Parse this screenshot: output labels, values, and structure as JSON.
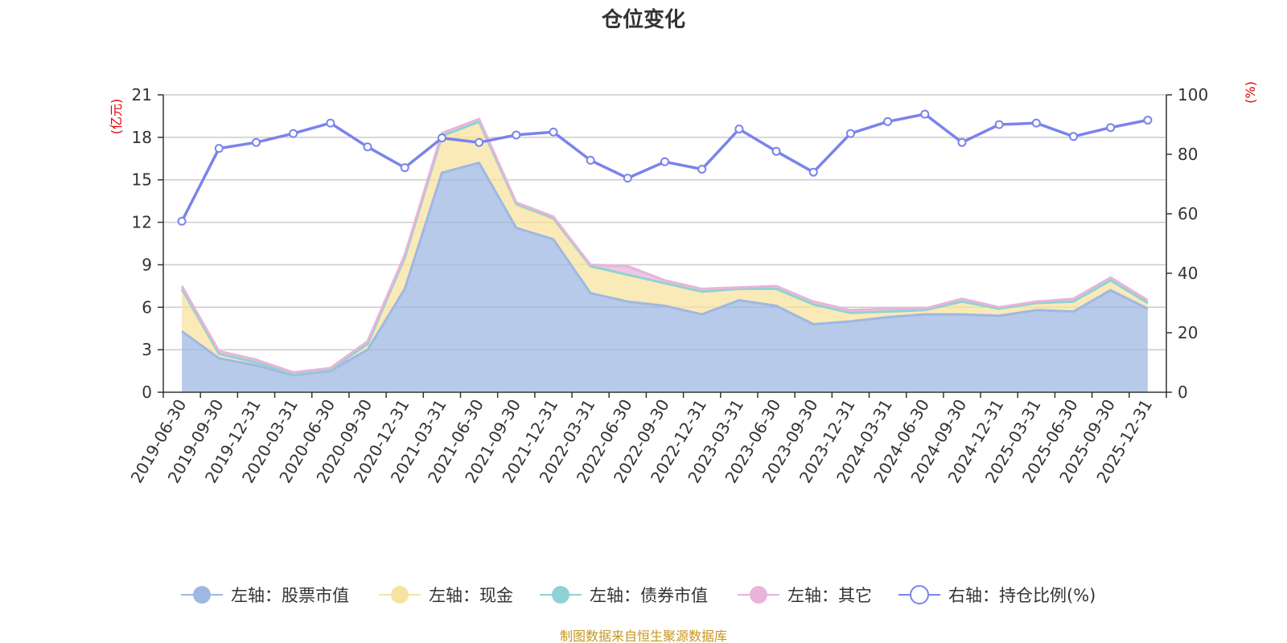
{
  "chart_data": {
    "type": "area",
    "title": "仓位变化",
    "left_axis": {
      "unit": "(亿元)",
      "ylim": [
        0,
        21
      ],
      "ticks": [
        0,
        3,
        6,
        9,
        12,
        15,
        18,
        21
      ]
    },
    "right_axis": {
      "unit": "(%)",
      "ylim": [
        0,
        100
      ],
      "ticks": [
        0,
        20,
        40,
        60,
        80,
        100
      ]
    },
    "categories": [
      "2019-06-30",
      "2019-09-30",
      "2019-12-31",
      "2020-03-31",
      "2020-06-30",
      "2020-09-30",
      "2020-12-31",
      "2021-03-31",
      "2021-06-30",
      "2021-09-30",
      "2021-12-31",
      "2022-03-31",
      "2022-06-30",
      "2022-09-30",
      "2022-12-31",
      "2023-03-31",
      "2023-06-30",
      "2023-09-30",
      "2023-12-31",
      "2024-03-31",
      "2024-06-30",
      "2024-09-30",
      "2024-12-31",
      "2025-03-31",
      "2025-06-30",
      "2025-09-30",
      "2025-12-31"
    ],
    "series": [
      {
        "name": "左轴：股票市值",
        "axis": "left",
        "color": "#9fb8e2",
        "values": [
          4.3,
          2.4,
          1.9,
          1.2,
          1.5,
          3.0,
          7.3,
          15.5,
          16.2,
          11.6,
          10.8,
          7.0,
          6.4,
          6.1,
          5.5,
          6.5,
          6.1,
          4.8,
          5.0,
          5.3,
          5.5,
          5.5,
          5.4,
          5.8,
          5.7,
          7.2,
          5.9
        ]
      },
      {
        "name": "左轴：现金",
        "axis": "left",
        "color": "#f7e3a0",
        "values": [
          2.9,
          0.3,
          0.2,
          0.1,
          0.1,
          0.4,
          2.2,
          2.6,
          2.9,
          1.6,
          1.4,
          1.9,
          1.9,
          1.6,
          1.6,
          0.8,
          1.2,
          1.4,
          0.6,
          0.4,
          0.3,
          0.9,
          0.5,
          0.5,
          0.7,
          0.7,
          0.4
        ]
      },
      {
        "name": "左轴：债券市值",
        "axis": "left",
        "color": "#8fd2d4",
        "values": [
          0.1,
          0.0,
          0.0,
          0.0,
          0.0,
          0.0,
          0.0,
          0.0,
          0.0,
          0.1,
          0.1,
          0.0,
          0.0,
          0.0,
          0.0,
          0.0,
          0.0,
          0.0,
          0.0,
          0.0,
          0.0,
          0.0,
          0.0,
          0.0,
          0.0,
          0.0,
          0.0
        ]
      },
      {
        "name": "左轴：其它",
        "axis": "left",
        "color": "#e8b4da",
        "values": [
          0.2,
          0.2,
          0.2,
          0.1,
          0.1,
          0.2,
          0.2,
          0.2,
          0.2,
          0.1,
          0.1,
          0.1,
          0.6,
          0.2,
          0.2,
          0.1,
          0.2,
          0.2,
          0.2,
          0.2,
          0.1,
          0.2,
          0.1,
          0.1,
          0.2,
          0.2,
          0.2
        ]
      },
      {
        "name": "右轴：持仓比例(%)",
        "axis": "right",
        "color": "#7b83eb",
        "values": [
          57.5,
          82,
          84,
          87,
          90.5,
          82.5,
          75.5,
          85.5,
          84,
          86.5,
          87.5,
          78,
          72,
          77.5,
          75,
          88.5,
          81,
          74,
          87,
          91,
          93.5,
          84,
          90,
          90.5,
          86,
          89,
          91.5
        ]
      }
    ],
    "legend_position": "bottom",
    "grid": true
  },
  "source_text": "制图数据来自恒生聚源数据库",
  "colors": {
    "left_unit": "#e00000",
    "right_unit": "#e00000",
    "source": "#c8961e",
    "grid": "#cccccc",
    "axis": "#333333"
  }
}
